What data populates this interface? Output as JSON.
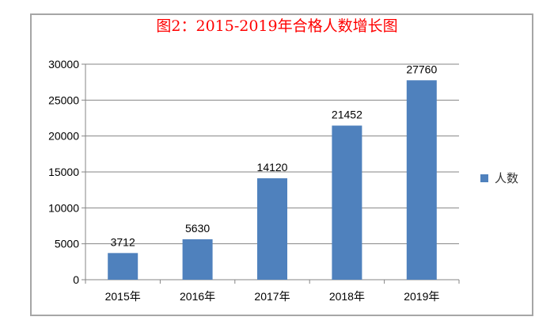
{
  "chart_data": {
    "type": "bar",
    "title": "图2：2015-2019年合格人数增长图",
    "categories": [
      "2015年",
      "2016年",
      "2017年",
      "2018年",
      "2019年"
    ],
    "series": [
      {
        "name": "人数",
        "values": [
          3712,
          5630,
          14120,
          21452,
          27760
        ],
        "color": "#4f81bd"
      }
    ],
    "values": [
      3712,
      5630,
      14120,
      21452,
      27760
    ],
    "xlabel": "",
    "ylabel": "",
    "ylim": [
      0,
      30000
    ],
    "yticks": [
      0,
      5000,
      10000,
      15000,
      20000,
      25000,
      30000
    ],
    "grid": true,
    "data_labels": true,
    "legend_position": "right"
  },
  "legend": {
    "label": "人数",
    "color": "#4f81bd"
  }
}
